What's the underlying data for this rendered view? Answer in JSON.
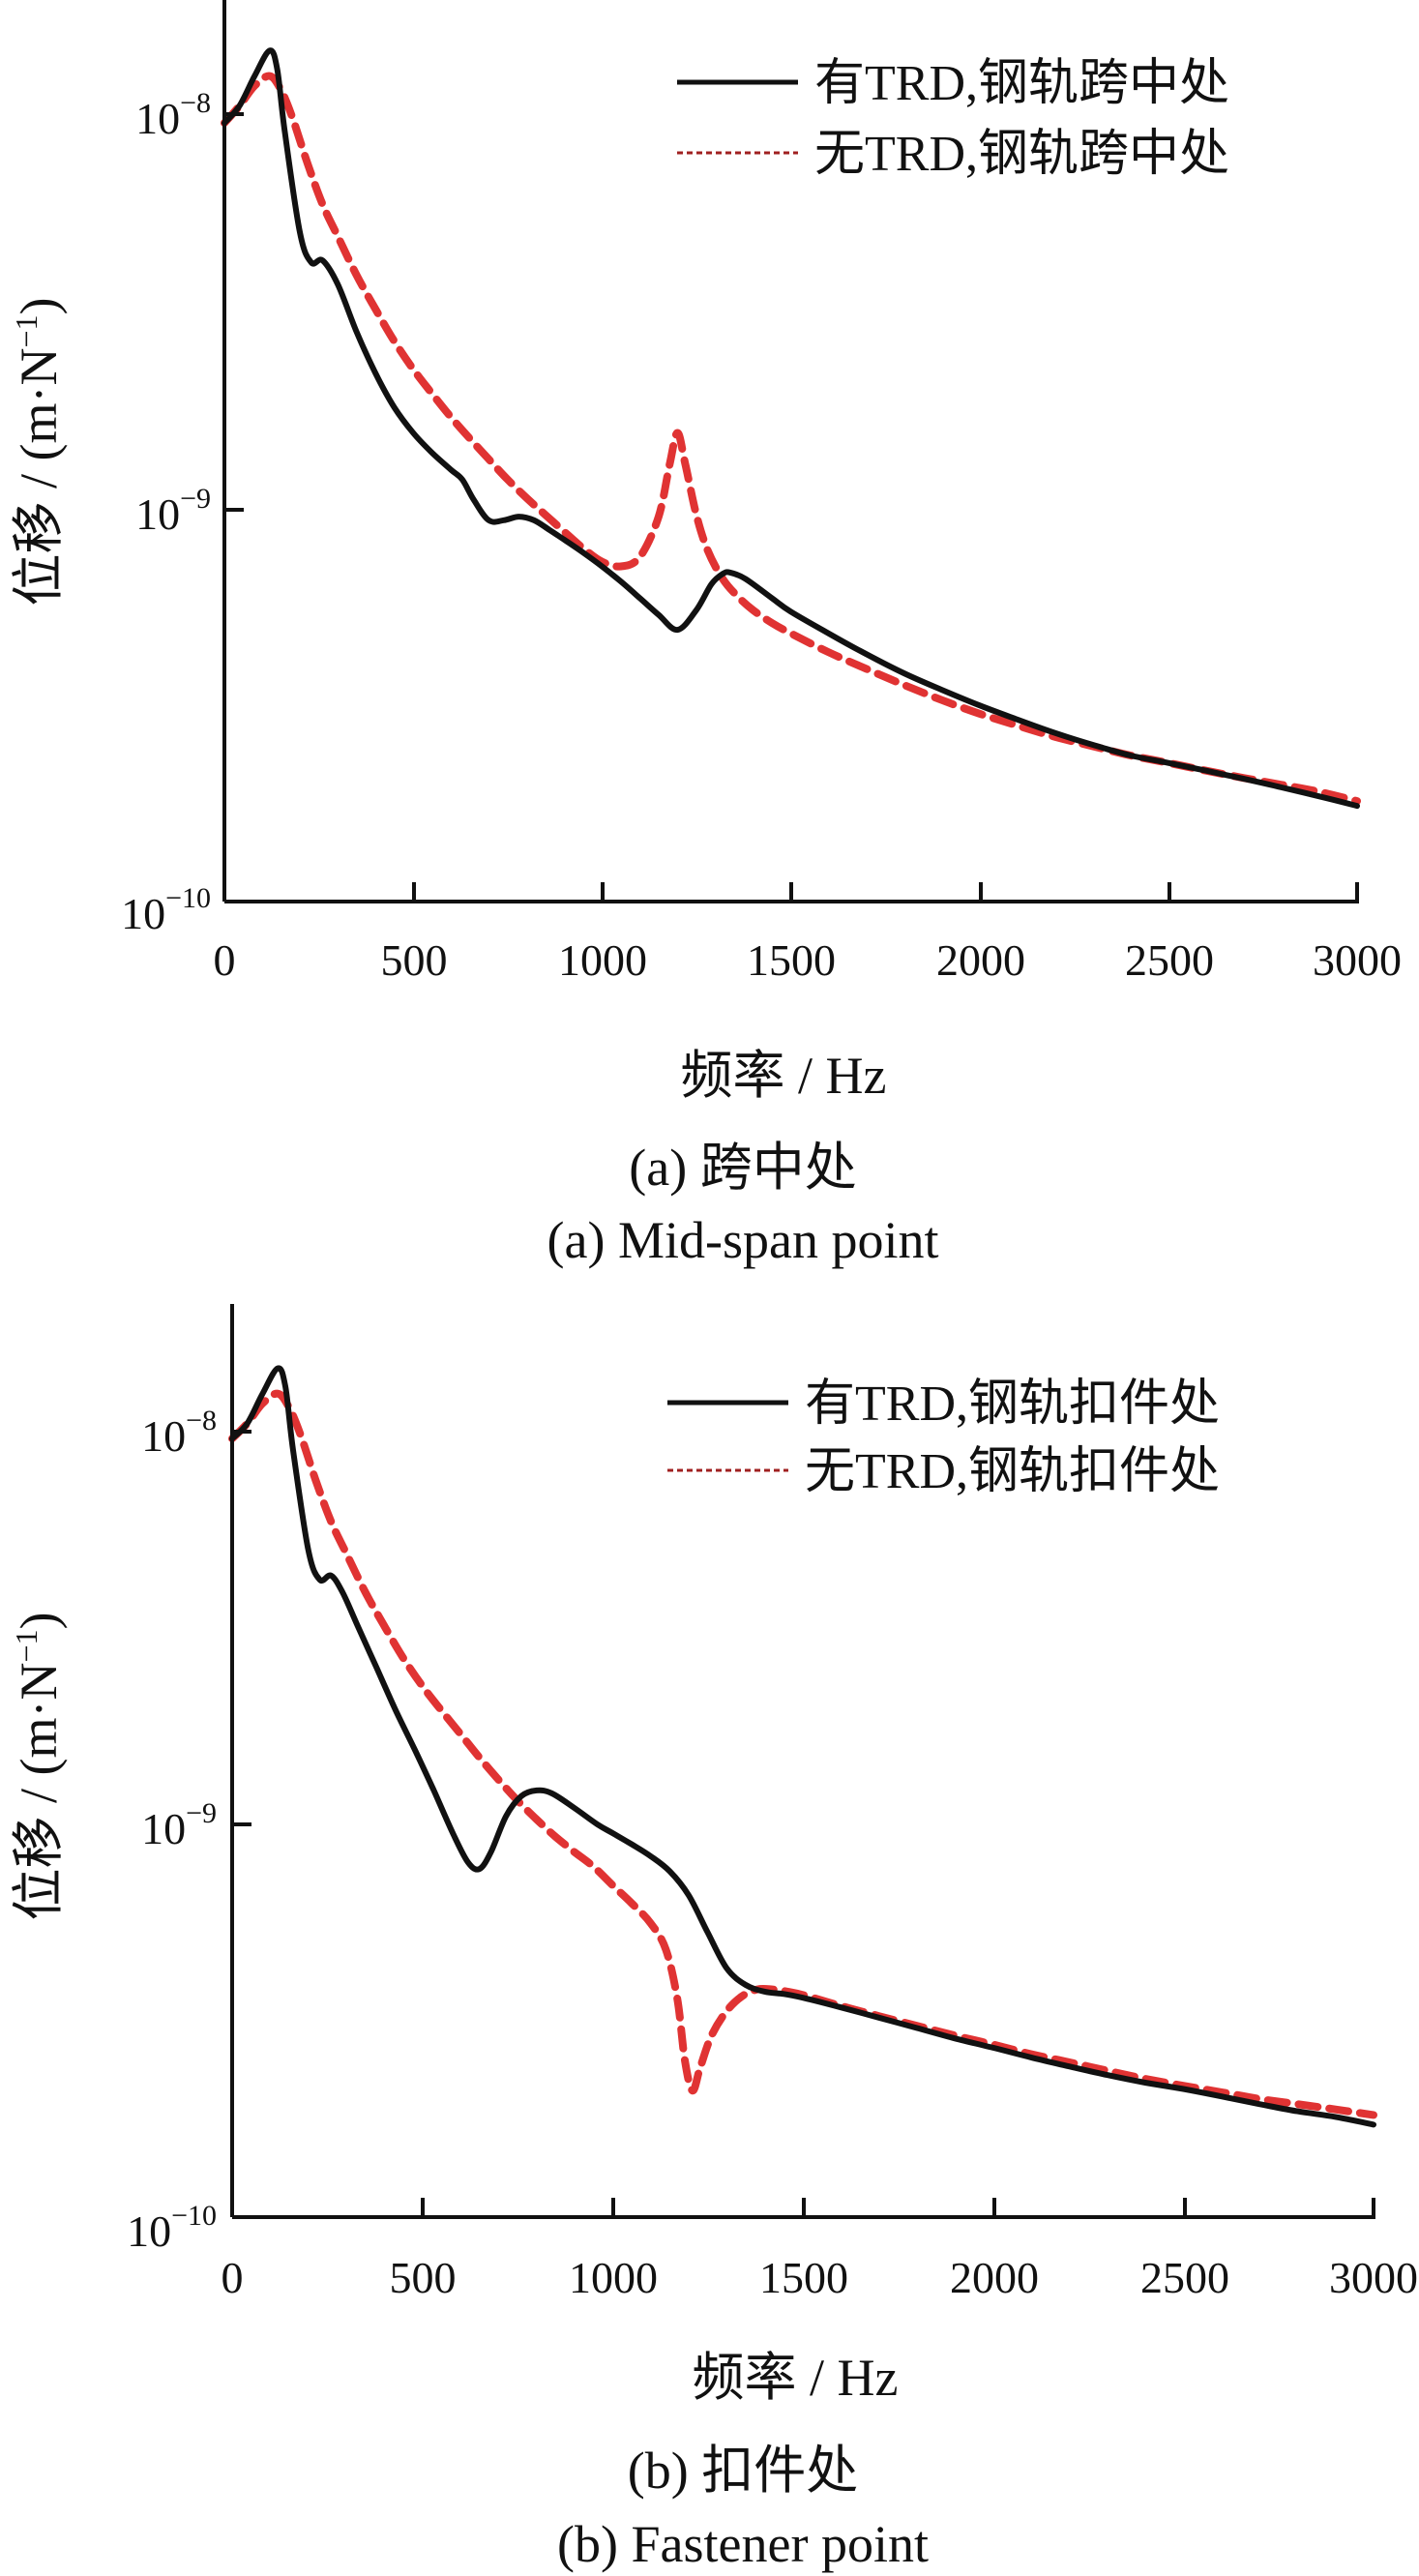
{
  "chart_data": [
    {
      "type": "line",
      "caption_cn": "(a)  跨中处",
      "caption_en": "(a)  Mid-span point",
      "xlabel": "频率 / Hz",
      "ylabel": "位移 / (m·N",
      "ylabel_exp": "−1",
      "ylabel_close": ")",
      "xlim": [
        0,
        3000
      ],
      "ylim": [
        1e-10,
        2.5e-08
      ],
      "yscale": "log",
      "xticks": [
        "0",
        "500",
        "1000",
        "1500",
        "2000",
        "2500",
        "3000"
      ],
      "xtick_values": [
        0,
        500,
        1000,
        1500,
        2000,
        2500,
        3000
      ],
      "yticks": [
        {
          "value": 1e-08,
          "base": "10",
          "exp": "−8"
        },
        {
          "value": 1e-09,
          "base": "10",
          "exp": "−9"
        },
        {
          "value": 1e-10,
          "base": "10",
          "exp": "−10"
        }
      ],
      "legend_position": "top-right",
      "series": [
        {
          "name": "有TRD,钢轨跨中处",
          "color": "#111111",
          "style": "solid",
          "x": [
            0,
            40,
            80,
            120,
            140,
            160,
            200,
            230,
            260,
            300,
            350,
            400,
            450,
            500,
            550,
            600,
            630,
            660,
            700,
            740,
            780,
            820,
            860,
            900,
            950,
            1000,
            1050,
            1100,
            1150,
            1200,
            1250,
            1290,
            1320,
            1340,
            1380,
            1450,
            1500,
            1600,
            1700,
            1800,
            1900,
            2000,
            2100,
            2200,
            2300,
            2400,
            2500,
            2600,
            2700,
            2800,
            2900,
            3000
          ],
          "y": [
            9.5e-09,
            1.05e-08,
            1.25e-08,
            1.45e-08,
            1.3e-08,
            9e-09,
            5e-09,
            4.2e-09,
            4.25e-09,
            3.7e-09,
            2.8e-09,
            2.2e-09,
            1.8e-09,
            1.55e-09,
            1.38e-09,
            1.25e-09,
            1.18e-09,
            1.05e-09,
            9.3e-10,
            9.3e-10,
            9.5e-10,
            9.3e-10,
            8.8e-10,
            8.3e-10,
            7.7e-10,
            7.1e-10,
            6.5e-10,
            5.9e-10,
            5.35e-10,
            4.9e-10,
            5.5e-10,
            6.4e-10,
            6.8e-10,
            6.85e-10,
            6.6e-10,
            5.9e-10,
            5.45e-10,
            4.8e-10,
            4.25e-10,
            3.8e-10,
            3.45e-10,
            3.15e-10,
            2.9e-10,
            2.68e-10,
            2.5e-10,
            2.35e-10,
            2.25e-10,
            2.15e-10,
            2.05e-10,
            1.95e-10,
            1.85e-10,
            1.75e-10
          ]
        },
        {
          "name": "无TRD,钢轨跨中处",
          "color": "#e03333",
          "style": "dashed",
          "x": [
            0,
            40,
            80,
            120,
            150,
            180,
            220,
            260,
            300,
            350,
            400,
            450,
            500,
            550,
            600,
            650,
            700,
            750,
            800,
            850,
            900,
            950,
            1000,
            1050,
            1100,
            1150,
            1180,
            1200,
            1220,
            1250,
            1280,
            1320,
            1360,
            1400,
            1450,
            1500,
            1600,
            1700,
            1800,
            1900,
            2000,
            2100,
            2200,
            2300,
            2400,
            2500,
            2600,
            2700,
            2800,
            2900,
            3000
          ],
          "y": [
            9.5e-09,
            1.05e-08,
            1.18e-08,
            1.25e-08,
            1.15e-08,
            9.8e-09,
            7.5e-09,
            5.9e-09,
            4.9e-09,
            3.9e-09,
            3.2e-09,
            2.65e-09,
            2.25e-09,
            1.95e-09,
            1.7e-09,
            1.5e-09,
            1.33e-09,
            1.18e-09,
            1.06e-09,
            9.6e-10,
            8.7e-10,
            7.9e-10,
            7.3e-10,
            7.1e-10,
            7.5e-10,
            9.5e-10,
            1.3e-09,
            1.55e-09,
            1.3e-09,
            9.6e-10,
            7.8e-10,
            6.6e-10,
            5.95e-10,
            5.5e-10,
            5.1e-10,
            4.8e-10,
            4.3e-10,
            3.9e-10,
            3.55e-10,
            3.25e-10,
            3e-10,
            2.8e-10,
            2.62e-10,
            2.48e-10,
            2.35e-10,
            2.25e-10,
            2.15e-10,
            2.06e-10,
            1.98e-10,
            1.9e-10,
            1.8e-10
          ]
        }
      ]
    },
    {
      "type": "line",
      "caption_cn": "(b)  扣件处",
      "caption_en": "(b)  Fastener point",
      "xlabel": "频率 / Hz",
      "ylabel": "位移 / (m·N",
      "ylabel_exp": "−1",
      "ylabel_close": ")",
      "xlim": [
        0,
        3000
      ],
      "ylim": [
        1e-10,
        2.5e-08
      ],
      "yscale": "log",
      "xticks": [
        "0",
        "500",
        "1000",
        "1500",
        "2000",
        "2500",
        "3000"
      ],
      "xtick_values": [
        0,
        500,
        1000,
        1500,
        2000,
        2500,
        3000
      ],
      "yticks": [
        {
          "value": 1e-08,
          "base": "10",
          "exp": "−8"
        },
        {
          "value": 1e-09,
          "base": "10",
          "exp": "−9"
        },
        {
          "value": 1e-10,
          "base": "10",
          "exp": "−10"
        }
      ],
      "legend_position": "top-right",
      "series": [
        {
          "name": "有TRD,钢轨扣件处",
          "color": "#111111",
          "style": "solid",
          "x": [
            0,
            40,
            80,
            120,
            140,
            160,
            200,
            230,
            260,
            290,
            330,
            380,
            430,
            480,
            530,
            580,
            620,
            650,
            680,
            720,
            760,
            800,
            840,
            900,
            960,
            1000,
            1050,
            1100,
            1150,
            1200,
            1250,
            1300,
            1350,
            1400,
            1450,
            1500,
            1600,
            1700,
            1800,
            1900,
            2000,
            2100,
            2200,
            2300,
            2400,
            2500,
            2600,
            2700,
            2800,
            2900,
            3000
          ],
          "y": [
            9.6e-09,
            1.05e-08,
            1.25e-08,
            1.45e-08,
            1.3e-08,
            9e-09,
            5e-09,
            4.2e-09,
            4.3e-09,
            3.9e-09,
            3.2e-09,
            2.5e-09,
            1.95e-09,
            1.55e-09,
            1.22e-09,
            9.5e-10,
            8e-10,
            7.7e-10,
            8.5e-10,
            1.05e-09,
            1.18e-09,
            1.22e-09,
            1.2e-09,
            1.1e-09,
            1e-09,
            9.5e-10,
            8.9e-10,
            8.3e-10,
            7.6e-10,
            6.6e-10,
            5.3e-10,
            4.3e-10,
            3.9e-10,
            3.75e-10,
            3.7e-10,
            3.62e-10,
            3.42e-10,
            3.22e-10,
            3.03e-10,
            2.85e-10,
            2.7e-10,
            2.55e-10,
            2.42e-10,
            2.3e-10,
            2.2e-10,
            2.12e-10,
            2.03e-10,
            1.94e-10,
            1.86e-10,
            1.8e-10,
            1.72e-10
          ]
        },
        {
          "name": "无TRD,钢轨扣件处",
          "color": "#e03333",
          "style": "dashed",
          "x": [
            0,
            40,
            80,
            120,
            150,
            180,
            220,
            260,
            300,
            350,
            400,
            450,
            500,
            550,
            600,
            650,
            700,
            750,
            800,
            850,
            900,
            950,
            1000,
            1050,
            1100,
            1140,
            1170,
            1190,
            1210,
            1230,
            1260,
            1300,
            1340,
            1380,
            1420,
            1460,
            1500,
            1600,
            1700,
            1800,
            1900,
            2000,
            2100,
            2200,
            2300,
            2400,
            2500,
            2600,
            2700,
            2800,
            2900,
            3000
          ],
          "y": [
            9.6e-09,
            1.05e-08,
            1.18e-08,
            1.25e-08,
            1.15e-08,
            9.8e-09,
            7.5e-09,
            5.9e-09,
            4.9e-09,
            3.9e-09,
            3.2e-09,
            2.65e-09,
            2.25e-09,
            1.95e-09,
            1.7e-09,
            1.48e-09,
            1.3e-09,
            1.15e-09,
            1.03e-09,
            9.3e-10,
            8.5e-10,
            7.8e-10,
            7e-10,
            6.3e-10,
            5.6e-10,
            4.8e-10,
            3.6e-10,
            2.5e-10,
            2.1e-10,
            2.4e-10,
            2.9e-10,
            3.35e-10,
            3.65e-10,
            3.8e-10,
            3.8e-10,
            3.75e-10,
            3.68e-10,
            3.45e-10,
            3.25e-10,
            3.07e-10,
            2.9e-10,
            2.75e-10,
            2.6e-10,
            2.48e-10,
            2.36e-10,
            2.25e-10,
            2.16e-10,
            2.08e-10,
            2e-10,
            1.94e-10,
            1.88e-10,
            1.82e-10
          ]
        }
      ]
    }
  ]
}
